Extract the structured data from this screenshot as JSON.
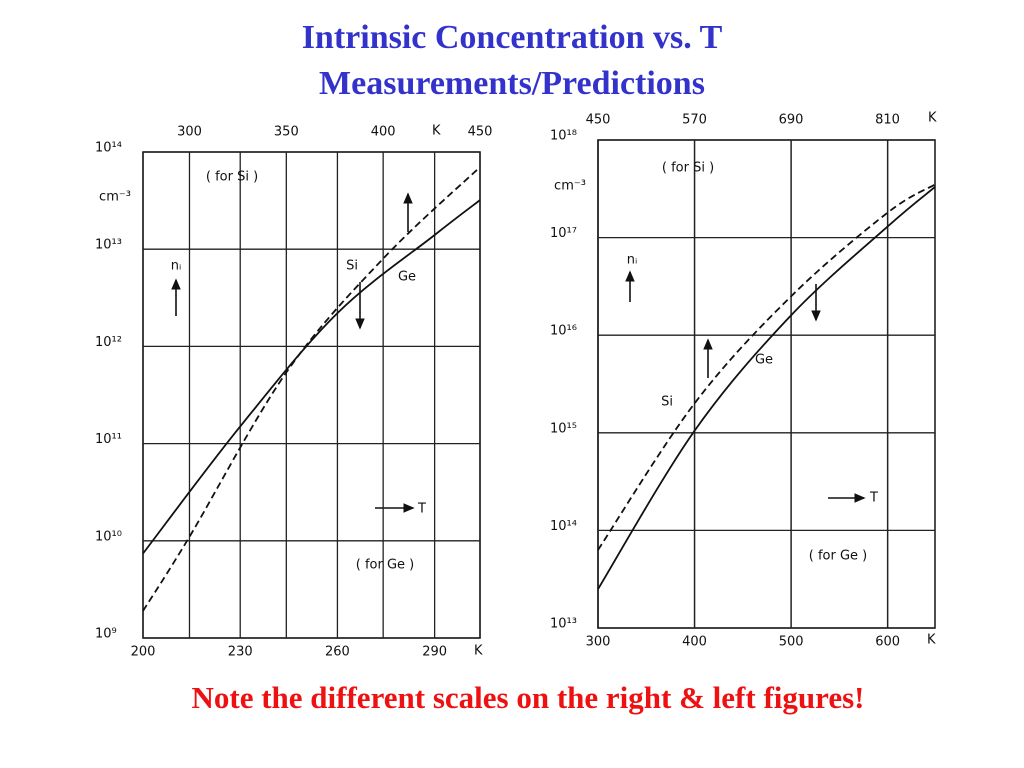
{
  "title": [
    "Intrinsic Concentration vs. T",
    "Measurements/Predictions"
  ],
  "chart_data": [
    {
      "type": "line",
      "log_y": true,
      "grid": true,
      "y_unit": "cm⁻³",
      "xlim": [
        200,
        304
      ],
      "xticks": [
        200,
        230,
        260,
        290
      ],
      "x_unit": "K",
      "x2lim": [
        276,
        450
      ],
      "x2ticks": [
        300,
        350,
        400,
        450
      ],
      "x2_unit": "K",
      "ylim": [
        1000000000.0,
        100000000000000.0
      ],
      "yticks": [
        {
          "value": 1000000000.0,
          "label": "10⁹"
        },
        {
          "value": 10000000000.0,
          "label": "10¹⁰"
        },
        {
          "value": 100000000000.0,
          "label": "10¹¹"
        },
        {
          "value": 1000000000000.0,
          "label": "10¹²"
        },
        {
          "value": 10000000000000.0,
          "label": "10¹³"
        },
        {
          "value": 100000000000000.0,
          "label": "10¹⁴"
        }
      ],
      "series": [
        {
          "name": "Si",
          "axis": "x2",
          "dashed": true,
          "color": "#111111",
          "x": [
            276,
            300,
            350,
            400,
            450
          ],
          "values": [
            1900000000.0,
            11000000000.0,
            540000000000.0,
            8000000000000.0,
            70000000000000.0
          ]
        },
        {
          "name": "Ge",
          "dashed": false,
          "color": "#111111",
          "x": [
            200,
            230,
            260,
            290,
            304
          ],
          "values": [
            7400000000.0,
            150000000000.0,
            2200000000000.0,
            14000000000000.0,
            32000000000000.0
          ]
        }
      ],
      "annotations": [
        "( for Si )",
        "( for Ge )",
        "nᵢ",
        "T"
      ]
    },
    {
      "type": "line",
      "log_y": true,
      "grid": true,
      "y_unit": "cm⁻³",
      "xlim": [
        300,
        649
      ],
      "xticks": [
        300,
        400,
        500,
        600
      ],
      "x_unit": "K",
      "x2lim": [
        450,
        869
      ],
      "x2ticks": [
        450,
        570,
        690,
        810
      ],
      "x2_unit": "K",
      "ylim": [
        10000000000000.0,
        1e+18
      ],
      "yticks": [
        {
          "value": 10000000000000.0,
          "label": "10¹³"
        },
        {
          "value": 100000000000000.0,
          "label": "10¹⁴"
        },
        {
          "value": 1000000000000000.0,
          "label": "10¹⁵"
        },
        {
          "value": 1e+16,
          "label": "10¹⁶"
        },
        {
          "value": 1e+17,
          "label": "10¹⁷"
        },
        {
          "value": 1e+18,
          "label": "10¹⁸"
        }
      ],
      "series": [
        {
          "name": "Si",
          "axis": "x2",
          "dashed": true,
          "color": "#111111",
          "x": [
            450,
            570,
            690,
            810,
            869
          ],
          "values": [
            63000000000000.0,
            2000000000000000.0,
            2.5e+16,
            1.8e+17,
            3.5e+17
          ]
        },
        {
          "name": "Ge",
          "dashed": false,
          "color": "#111111",
          "x": [
            300,
            400,
            500,
            600,
            649
          ],
          "values": [
            25000000000000.0,
            1050000000000000.0,
            1.6e+16,
            1.3e+17,
            3.3e+17
          ]
        }
      ],
      "annotations": [
        "( for Si )",
        "( for Ge )",
        "nᵢ",
        "T"
      ]
    }
  ],
  "footnote": "Note the different scales on the right & left figures!"
}
